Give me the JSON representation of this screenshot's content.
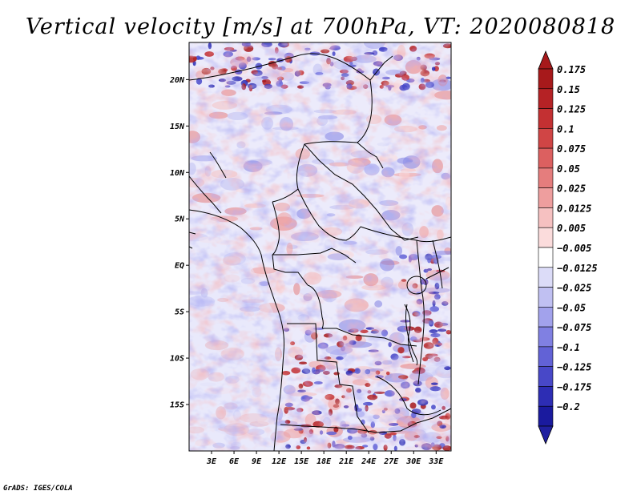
{
  "chart_data": {
    "type": "heatmap",
    "title": "Vertical velocity [m/s] at 700hPa, VT: 2020080818",
    "variable": "Vertical velocity",
    "units": "m/s",
    "level": "700hPa",
    "valid_time": "2020080818",
    "lon_range": [
      0,
      35
    ],
    "lat_range": [
      -20,
      24
    ],
    "x_ticks": [
      {
        "value": 3,
        "label": "3E"
      },
      {
        "value": 6,
        "label": "6E"
      },
      {
        "value": 9,
        "label": "9E"
      },
      {
        "value": 12,
        "label": "12E"
      },
      {
        "value": 15,
        "label": "15E"
      },
      {
        "value": 18,
        "label": "18E"
      },
      {
        "value": 21,
        "label": "21E"
      },
      {
        "value": 24,
        "label": "24E"
      },
      {
        "value": 27,
        "label": "27E"
      },
      {
        "value": 30,
        "label": "30E"
      },
      {
        "value": 33,
        "label": "33E"
      }
    ],
    "y_ticks": [
      {
        "value": 20,
        "label": "20N"
      },
      {
        "value": 15,
        "label": "15N"
      },
      {
        "value": 10,
        "label": "10N"
      },
      {
        "value": 5,
        "label": "5N"
      },
      {
        "value": 0,
        "label": "EQ"
      },
      {
        "value": -5,
        "label": "5S"
      },
      {
        "value": -10,
        "label": "10S"
      },
      {
        "value": -15,
        "label": "15S"
      }
    ],
    "colorbar": {
      "levels": [
        {
          "label": "0.175",
          "color": "#a7191b"
        },
        {
          "label": "0.15",
          "color": "#b52225"
        },
        {
          "label": "0.125",
          "color": "#c33032"
        },
        {
          "label": "0.1",
          "color": "#d04545"
        },
        {
          "label": "0.075",
          "color": "#dc6060"
        },
        {
          "label": "0.05",
          "color": "#e57d7d"
        },
        {
          "label": "0.025",
          "color": "#ee9e9e"
        },
        {
          "label": "0.0125",
          "color": "#f6c1c1"
        },
        {
          "label": "0.005",
          "color": "#fbdcdc"
        },
        {
          "label": "−0.005",
          "color": "#ffffff"
        },
        {
          "label": "−0.0125",
          "color": "#dcdcf8"
        },
        {
          "label": "−0.025",
          "color": "#c0c0f2"
        },
        {
          "label": "−0.05",
          "color": "#a2a2ec"
        },
        {
          "label": "−0.075",
          "color": "#8080e2"
        },
        {
          "label": "−0.1",
          "color": "#6262d6"
        },
        {
          "label": "−0.125",
          "color": "#4848c8"
        },
        {
          "label": "−0.175",
          "color": "#2d2db4"
        },
        {
          "label": "−0.2",
          "color": "#1a1a9e"
        }
      ],
      "top_cap_color": "#a7191b",
      "bottom_cap_color": "#2020a0"
    }
  },
  "footer": {
    "credit": "GrADS: IGES/COLA"
  }
}
